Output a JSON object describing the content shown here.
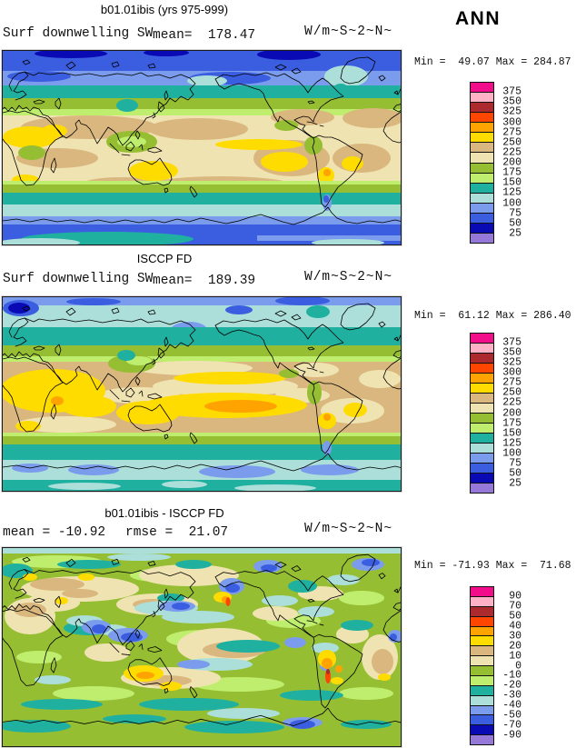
{
  "header": {
    "season": "ANN"
  },
  "palette": {
    "colors_top_to_bottom": [
      "#F20D8A",
      "#FFB2C6",
      "#AC2A2E",
      "#FF4600",
      "#FFA300",
      "#FFDC00",
      "#D9B77E",
      "#F0E3B2",
      "#96BE33",
      "#BFEE6E",
      "#1FB0A0",
      "#ACDFD9",
      "#7B9CEC",
      "#3B5EE0",
      "#0A0AB4",
      "#9678D8"
    ]
  },
  "panels": [
    {
      "title": "b01.01ibis (yrs 975-999)",
      "label_left": "Surf downwelling SW",
      "label_mid": "mean=  178.47",
      "units": "W/m~S~2~N~",
      "minmax": "Min =  49.07 Max = 284.87",
      "ticks": [
        "375",
        "350",
        "325",
        "300",
        "275",
        "250",
        "225",
        "200",
        "175",
        "150",
        "125",
        "100",
        "75",
        "50",
        "25"
      ]
    },
    {
      "title": "ISCCP FD",
      "label_left": "Surf downwelling SW",
      "label_mid": "mean=  189.39",
      "units": "W/m~S~2~N~",
      "minmax": "Min =  61.12 Max = 286.40",
      "ticks": [
        "375",
        "350",
        "325",
        "300",
        "275",
        "250",
        "225",
        "200",
        "175",
        "150",
        "125",
        "100",
        "75",
        "50",
        "25"
      ]
    },
    {
      "title": "b01.01ibis - ISCCP FD",
      "label_left": "mean = -10.92",
      "label_mid": "rmse =  21.07",
      "units": "W/m~S~2~N~",
      "minmax": "Min = -71.93 Max =  71.68",
      "ticks": [
        "90",
        "70",
        "50",
        "40",
        "30",
        "20",
        "10",
        "0",
        "-10",
        "-20",
        "-30",
        "-40",
        "-50",
        "-70",
        "-90"
      ]
    }
  ],
  "chart_data": [
    {
      "type": "heatmap",
      "subtype": "filled-contour world map, cylindrical lat-lon",
      "title": "b01.01ibis (yrs 975-999)",
      "variable": "Surf downwelling SW",
      "units": "W/m^2",
      "season": "ANN",
      "mean": 178.47,
      "min": 49.07,
      "max": 284.87,
      "contour_levels": [
        25,
        50,
        75,
        100,
        125,
        150,
        175,
        200,
        225,
        250,
        275,
        300,
        325,
        350,
        375
      ],
      "legend_position": "right"
    },
    {
      "type": "heatmap",
      "subtype": "filled-contour world map, cylindrical lat-lon",
      "title": "ISCCP FD",
      "variable": "Surf downwelling SW",
      "units": "W/m^2",
      "season": "ANN",
      "mean": 189.39,
      "min": 61.12,
      "max": 286.4,
      "contour_levels": [
        25,
        50,
        75,
        100,
        125,
        150,
        175,
        200,
        225,
        250,
        275,
        300,
        325,
        350,
        375
      ],
      "legend_position": "right"
    },
    {
      "type": "heatmap",
      "subtype": "filled-contour difference map, cylindrical lat-lon",
      "title": "b01.01ibis - ISCCP FD",
      "variable": "Surf downwelling SW difference",
      "units": "W/m^2",
      "season": "ANN",
      "mean": -10.92,
      "rmse": 21.07,
      "min": -71.93,
      "max": 71.68,
      "contour_levels": [
        -90,
        -70,
        -50,
        -40,
        -30,
        -20,
        -10,
        0,
        10,
        20,
        30,
        40,
        50,
        70,
        90
      ],
      "legend_position": "right"
    }
  ]
}
